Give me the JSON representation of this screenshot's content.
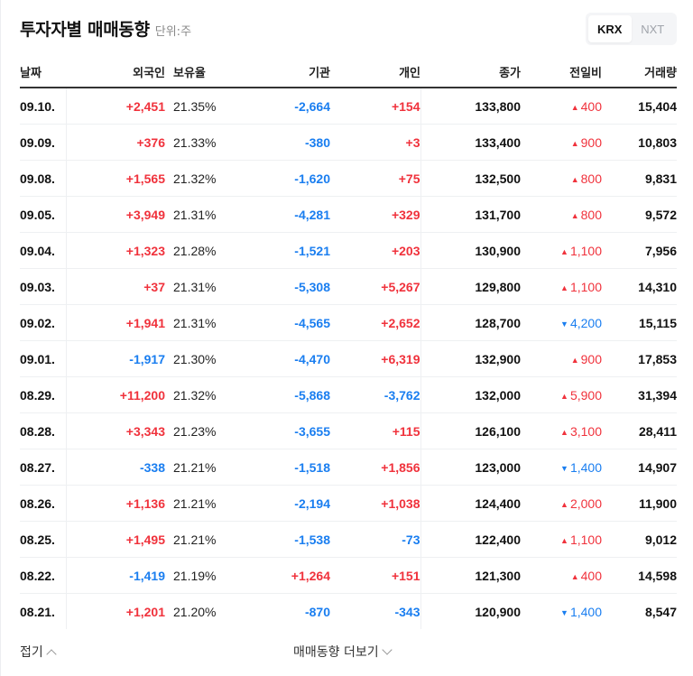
{
  "header": {
    "title": "투자자별 매매동향",
    "unit": "단위:주"
  },
  "market_toggle": {
    "options": [
      "KRX",
      "NXT"
    ],
    "selected": "KRX"
  },
  "colors": {
    "up": "#f0323c",
    "down": "#1a7ef0",
    "text": "#111111"
  },
  "table": {
    "columns": [
      "날짜",
      "외국인",
      "보유율",
      "기관",
      "개인",
      "종가",
      "전일비",
      "거래량"
    ],
    "rows": [
      {
        "date": "09.10.",
        "foreign": "+2,451",
        "ratio": "21.35%",
        "inst": "-2,664",
        "indiv": "+154",
        "close": "133,800",
        "chg_dir": "up",
        "chg": "400",
        "volume": "15,404"
      },
      {
        "date": "09.09.",
        "foreign": "+376",
        "ratio": "21.33%",
        "inst": "-380",
        "indiv": "+3",
        "close": "133,400",
        "chg_dir": "up",
        "chg": "900",
        "volume": "10,803"
      },
      {
        "date": "09.08.",
        "foreign": "+1,565",
        "ratio": "21.32%",
        "inst": "-1,620",
        "indiv": "+75",
        "close": "132,500",
        "chg_dir": "up",
        "chg": "800",
        "volume": "9,831"
      },
      {
        "date": "09.05.",
        "foreign": "+3,949",
        "ratio": "21.31%",
        "inst": "-4,281",
        "indiv": "+329",
        "close": "131,700",
        "chg_dir": "up",
        "chg": "800",
        "volume": "9,572"
      },
      {
        "date": "09.04.",
        "foreign": "+1,323",
        "ratio": "21.28%",
        "inst": "-1,521",
        "indiv": "+203",
        "close": "130,900",
        "chg_dir": "up",
        "chg": "1,100",
        "volume": "7,956"
      },
      {
        "date": "09.03.",
        "foreign": "+37",
        "ratio": "21.31%",
        "inst": "-5,308",
        "indiv": "+5,267",
        "close": "129,800",
        "chg_dir": "up",
        "chg": "1,100",
        "volume": "14,310"
      },
      {
        "date": "09.02.",
        "foreign": "+1,941",
        "ratio": "21.31%",
        "inst": "-4,565",
        "indiv": "+2,652",
        "close": "128,700",
        "chg_dir": "down",
        "chg": "4,200",
        "volume": "15,115"
      },
      {
        "date": "09.01.",
        "foreign": "-1,917",
        "ratio": "21.30%",
        "inst": "-4,470",
        "indiv": "+6,319",
        "close": "132,900",
        "chg_dir": "up",
        "chg": "900",
        "volume": "17,853"
      },
      {
        "date": "08.29.",
        "foreign": "+11,200",
        "ratio": "21.32%",
        "inst": "-5,868",
        "indiv": "-3,762",
        "close": "132,000",
        "chg_dir": "up",
        "chg": "5,900",
        "volume": "31,394"
      },
      {
        "date": "08.28.",
        "foreign": "+3,343",
        "ratio": "21.23%",
        "inst": "-3,655",
        "indiv": "+115",
        "close": "126,100",
        "chg_dir": "up",
        "chg": "3,100",
        "volume": "28,411"
      },
      {
        "date": "08.27.",
        "foreign": "-338",
        "ratio": "21.21%",
        "inst": "-1,518",
        "indiv": "+1,856",
        "close": "123,000",
        "chg_dir": "down",
        "chg": "1,400",
        "volume": "14,907"
      },
      {
        "date": "08.26.",
        "foreign": "+1,136",
        "ratio": "21.21%",
        "inst": "-2,194",
        "indiv": "+1,038",
        "close": "124,400",
        "chg_dir": "up",
        "chg": "2,000",
        "volume": "11,900"
      },
      {
        "date": "08.25.",
        "foreign": "+1,495",
        "ratio": "21.21%",
        "inst": "-1,538",
        "indiv": "-73",
        "close": "122,400",
        "chg_dir": "up",
        "chg": "1,100",
        "volume": "9,012"
      },
      {
        "date": "08.22.",
        "foreign": "-1,419",
        "ratio": "21.19%",
        "inst": "+1,264",
        "indiv": "+151",
        "close": "121,300",
        "chg_dir": "up",
        "chg": "400",
        "volume": "14,598"
      },
      {
        "date": "08.21.",
        "foreign": "+1,201",
        "ratio": "21.20%",
        "inst": "-870",
        "indiv": "-343",
        "close": "120,900",
        "chg_dir": "down",
        "chg": "1,400",
        "volume": "8,547"
      }
    ]
  },
  "footer": {
    "collapse_label": "접기",
    "more_label": "매매동향 더보기"
  },
  "icons": {
    "up_triangle": "▲",
    "down_triangle": "▼"
  }
}
